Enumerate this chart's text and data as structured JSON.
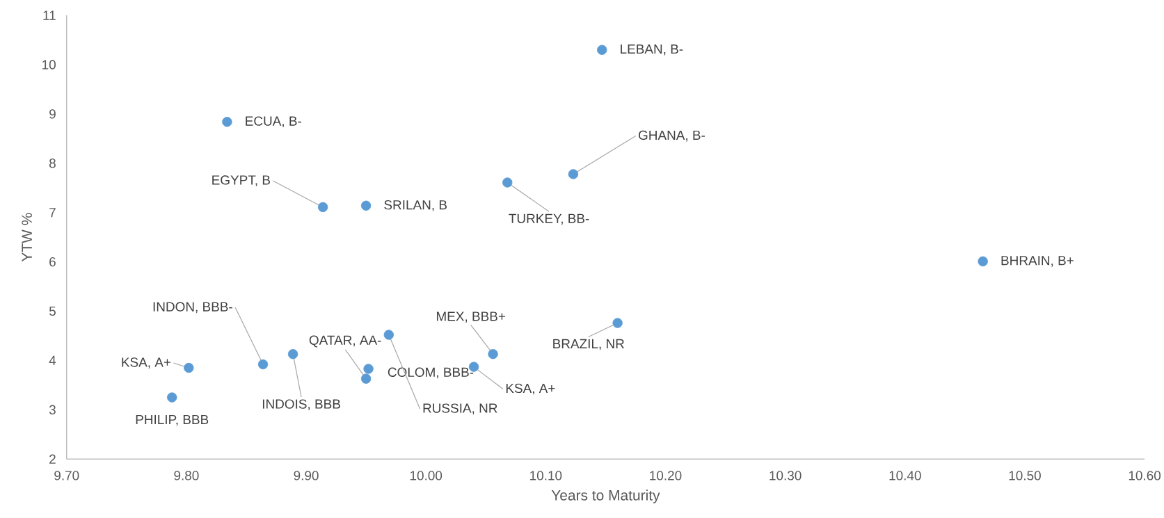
{
  "chart_data": {
    "type": "scatter",
    "xlabel": "Years to Maturity",
    "ylabel": "YTW %",
    "xlim": [
      9.7,
      10.6
    ],
    "xticks": [
      {
        "value": 9.7,
        "label": "9.70"
      },
      {
        "value": 9.8,
        "label": "9.80"
      },
      {
        "value": 9.9,
        "label": "9.90"
      },
      {
        "value": 10.0,
        "label": "10.00"
      },
      {
        "value": 10.1,
        "label": "10.10"
      },
      {
        "value": 10.2,
        "label": "10.20"
      },
      {
        "value": 10.3,
        "label": "10.30"
      },
      {
        "value": 10.4,
        "label": "10.40"
      },
      {
        "value": 10.5,
        "label": "10.50"
      },
      {
        "value": 10.6,
        "label": "10.60"
      }
    ],
    "ylim": [
      2,
      11
    ],
    "yticks": [
      2,
      3,
      4,
      5,
      6,
      7,
      8,
      9,
      10,
      11
    ],
    "marker": "circle",
    "grid": false,
    "series": [
      {
        "color": "#5b9bd5",
        "x": [
          10.147,
          9.834,
          10.123,
          10.068,
          9.914,
          9.95,
          10.465,
          10.16,
          10.056,
          9.952,
          9.969,
          10.04,
          9.95,
          9.889,
          9.864,
          9.802,
          9.788
        ],
        "values": [
          10.3,
          8.84,
          7.78,
          7.61,
          7.11,
          7.14,
          6.01,
          4.76,
          4.13,
          3.83,
          4.52,
          3.87,
          3.63,
          4.13,
          3.92,
          3.85,
          3.25
        ]
      }
    ],
    "annotations": [
      {
        "text": "LEBAN, B-",
        "x": 10.147,
        "y": 10.3
      },
      {
        "text": "ECUA, B-",
        "x": 9.834,
        "y": 8.84
      },
      {
        "text": "GHANA, B-",
        "x": 10.123,
        "y": 7.78
      },
      {
        "text": "TURKEY, BB-",
        "x": 10.068,
        "y": 7.61
      },
      {
        "text": "EGYPT, B",
        "x": 9.914,
        "y": 7.11
      },
      {
        "text": "SRILAN, B",
        "x": 9.95,
        "y": 7.14
      },
      {
        "text": "BHRAIN, B+",
        "x": 10.465,
        "y": 6.01
      },
      {
        "text": "BRAZIL, NR",
        "x": 10.16,
        "y": 4.76
      },
      {
        "text": "MEX, BBB+",
        "x": 10.056,
        "y": 4.13
      },
      {
        "text": "COLOM, BBB-",
        "x": 9.952,
        "y": 3.83
      },
      {
        "text": "RUSSIA, NR",
        "x": 9.969,
        "y": 4.52
      },
      {
        "text": "KSA, A+",
        "x": 10.04,
        "y": 3.87
      },
      {
        "text": "QATAR, AA-",
        "x": 9.95,
        "y": 3.63
      },
      {
        "text": "INDOIS, BBB",
        "x": 9.889,
        "y": 4.13
      },
      {
        "text": "INDON, BBB-",
        "x": 9.864,
        "y": 3.92
      },
      {
        "text": "KSA, A+",
        "x": 9.802,
        "y": 3.85
      },
      {
        "text": "PHILIP, BBB",
        "x": 9.788,
        "y": 3.25
      }
    ]
  }
}
